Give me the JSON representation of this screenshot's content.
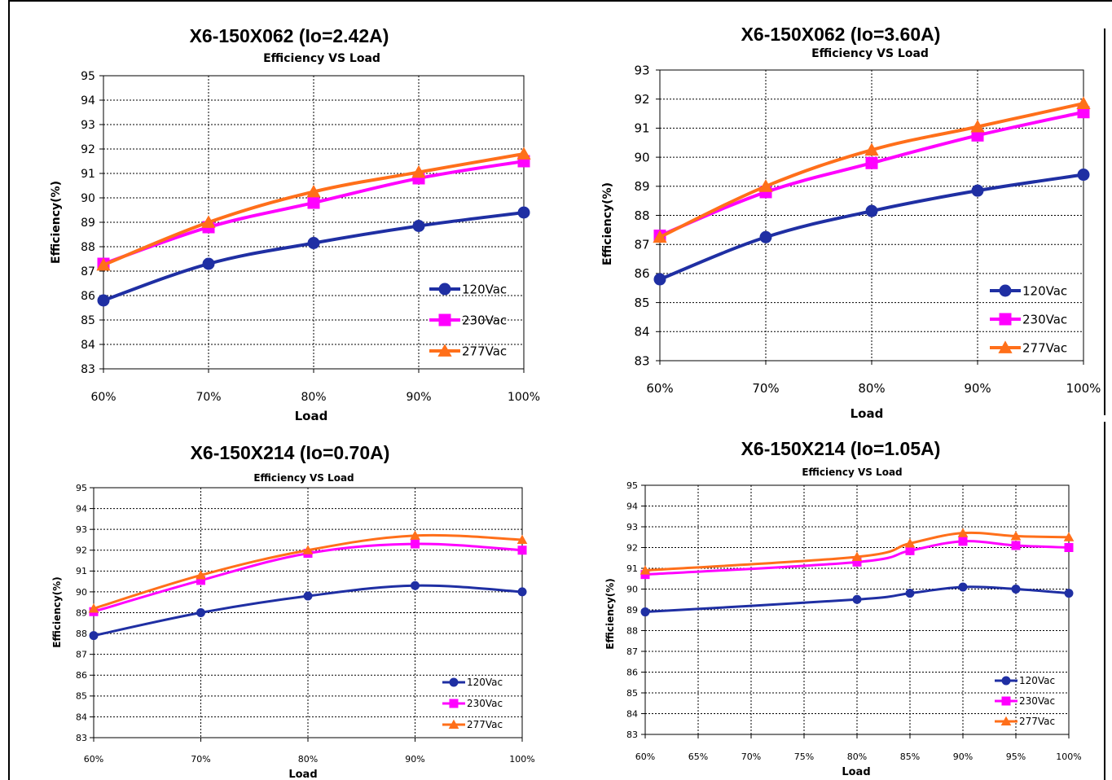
{
  "colors": {
    "s120": "#1f2fa3",
    "s230": "#ff00ff",
    "s277": "#ff6f1a"
  },
  "chart_data": [
    {
      "type": "line",
      "title": "X6-150X062 (Io=2.42A)",
      "subtitle": "Efficiency VS  Load",
      "xlabel": "Load",
      "ylabel": "Efficiency(%)",
      "categories": [
        "60%",
        "70%",
        "80%",
        "90%",
        "100%"
      ],
      "x": [
        60,
        70,
        80,
        90,
        100
      ],
      "ylim": [
        83,
        95
      ],
      "yticks": [
        "83",
        "84",
        "85",
        "86",
        "87",
        "88",
        "89",
        "90",
        "91",
        "92",
        "93",
        "94",
        "95"
      ],
      "grid": true,
      "legend_position": "bottom-right",
      "series": [
        {
          "name": "120Vac",
          "values": [
            85.8,
            87.3,
            88.15,
            88.85,
            89.4
          ]
        },
        {
          "name": "230Vac",
          "values": [
            87.3,
            88.8,
            89.8,
            90.8,
            91.5
          ]
        },
        {
          "name": "277Vac",
          "values": [
            87.25,
            89.0,
            90.25,
            91.05,
            91.8
          ]
        }
      ]
    },
    {
      "type": "line",
      "title": "X6-150X062 (Io=3.60A)",
      "subtitle": "Efficiency VS  Load",
      "xlabel": "Load",
      "ylabel": "Efficiency(%)",
      "categories": [
        "60%",
        "70%",
        "80%",
        "90%",
        "100%"
      ],
      "x": [
        60,
        70,
        80,
        90,
        100
      ],
      "ylim": [
        83,
        93
      ],
      "yticks": [
        "83",
        "84",
        "85",
        "86",
        "87",
        "88",
        "89",
        "90",
        "91",
        "92",
        "93"
      ],
      "grid": true,
      "legend_position": "bottom-right",
      "series": [
        {
          "name": "120Vac",
          "values": [
            85.8,
            87.25,
            88.15,
            88.85,
            89.4
          ]
        },
        {
          "name": "230Vac",
          "values": [
            87.3,
            88.8,
            89.8,
            90.75,
            91.55
          ]
        },
        {
          "name": "277Vac",
          "values": [
            87.25,
            89.0,
            90.25,
            91.05,
            91.85
          ]
        }
      ]
    },
    {
      "type": "line",
      "title": "X6-150X214 (Io=0.70A)",
      "subtitle": "Efficiency VS  Load",
      "xlabel": "Load",
      "ylabel": "Efficiency(%)",
      "categories": [
        "60%",
        "70%",
        "80%",
        "90%",
        "100%"
      ],
      "x": [
        60,
        70,
        80,
        90,
        100
      ],
      "ylim": [
        83,
        95
      ],
      "yticks": [
        "83",
        "84",
        "85",
        "86",
        "87",
        "88",
        "89",
        "90",
        "91",
        "92",
        "93",
        "94",
        "95"
      ],
      "grid": true,
      "legend_position": "bottom-right",
      "series": [
        {
          "name": "120Vac",
          "values": [
            87.9,
            89.0,
            89.8,
            90.3,
            90.0
          ]
        },
        {
          "name": "230Vac",
          "values": [
            89.05,
            90.55,
            91.85,
            92.3,
            92.0
          ]
        },
        {
          "name": "277Vac",
          "values": [
            89.2,
            90.8,
            92.0,
            92.7,
            92.5
          ]
        }
      ]
    },
    {
      "type": "line",
      "title": "X6-150X214 (Io=1.05A)",
      "subtitle": "Efficiency VS  Load",
      "xlabel": "Load",
      "ylabel": "Efficiency(%)",
      "categories": [
        "60%",
        "65%",
        "70%",
        "75%",
        "80%",
        "85%",
        "90%",
        "95%",
        "100%"
      ],
      "x": [
        60,
        65,
        70,
        75,
        80,
        85,
        90,
        95,
        100
      ],
      "ylim": [
        83,
        95
      ],
      "yticks": [
        "83",
        "84",
        "85",
        "86",
        "87",
        "88",
        "89",
        "90",
        "91",
        "92",
        "93",
        "94",
        "95"
      ],
      "grid": true,
      "legend_position": "bottom-right",
      "series": [
        {
          "name": "120Vac",
          "x": [
            60,
            80,
            85,
            90,
            95,
            100
          ],
          "values": [
            88.9,
            89.5,
            89.8,
            90.1,
            90.0,
            89.8
          ]
        },
        {
          "name": "230Vac",
          "x": [
            60,
            80,
            85,
            90,
            95,
            100
          ],
          "values": [
            90.7,
            91.3,
            91.85,
            92.3,
            92.1,
            92.0
          ]
        },
        {
          "name": "277Vac",
          "x": [
            60,
            80,
            85,
            90,
            95,
            100
          ],
          "values": [
            90.9,
            91.55,
            92.2,
            92.7,
            92.55,
            92.5
          ]
        }
      ]
    }
  ]
}
